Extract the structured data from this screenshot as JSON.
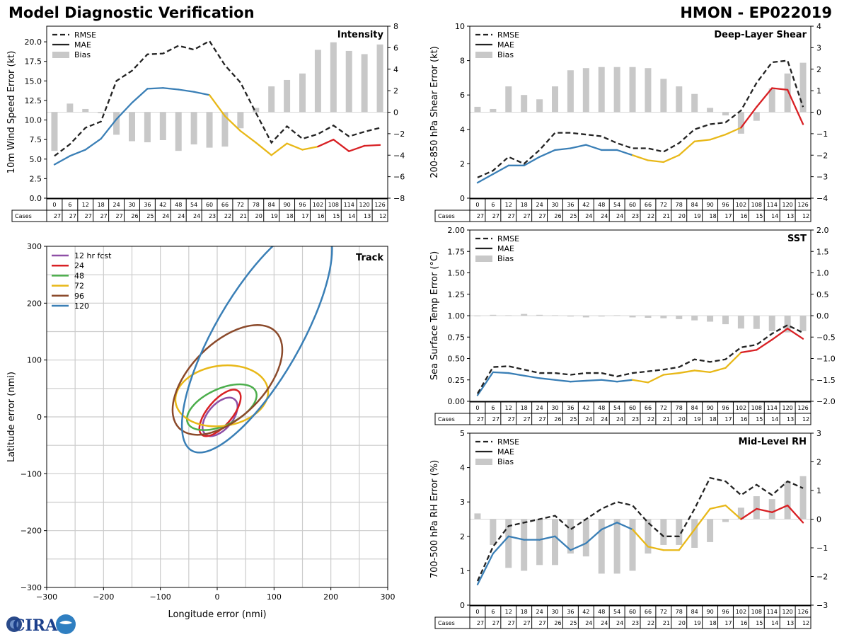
{
  "header": {
    "title": "Model Diagnostic Verification",
    "model_storm": "HMON - EP022019"
  },
  "logo": {
    "text": "CIRA"
  },
  "colors": {
    "rmse": "#222222",
    "bias_bar": "#c8c8c8",
    "blue": "#3a7fb6",
    "yellow": "#e8b818",
    "red": "#d82024",
    "purple": "#8e4fa6",
    "green": "#4cae4c",
    "brown": "#8b4a2b",
    "grid": "#cccccc"
  },
  "table": {
    "cases_label": "Cases",
    "hours": [
      "0",
      "6",
      "12",
      "18",
      "24",
      "30",
      "36",
      "42",
      "48",
      "54",
      "60",
      "66",
      "72",
      "78",
      "84",
      "90",
      "96",
      "102",
      "108",
      "114",
      "120",
      "126"
    ],
    "cases": [
      "27",
      "27",
      "27",
      "27",
      "27",
      "26",
      "25",
      "24",
      "24",
      "24",
      "23",
      "22",
      "21",
      "20",
      "19",
      "18",
      "17",
      "16",
      "15",
      "14",
      "13",
      "12"
    ]
  },
  "legend_labels": {
    "rmse": "RMSE",
    "mae": "MAE",
    "bias": "Bias"
  },
  "chart_data": [
    {
      "id": "intensity",
      "type": "line",
      "title": "Intensity",
      "ylabel": "10m Wind Speed Error (kt)",
      "x": [
        0,
        6,
        12,
        18,
        24,
        30,
        36,
        42,
        48,
        54,
        60,
        66,
        72,
        78,
        84,
        90,
        96,
        102,
        108,
        114,
        120,
        126
      ],
      "ylim": [
        0,
        22
      ],
      "yticks": [
        0.0,
        2.5,
        5.0,
        7.5,
        10.0,
        12.5,
        15.0,
        17.5,
        20.0
      ],
      "ytick_labels": [
        "0.0",
        "2.5",
        "5.0",
        "7.5",
        "10.0",
        "12.5",
        "15.0",
        "17.5",
        "20.0"
      ],
      "y2lim": [
        -8,
        8
      ],
      "y2ticks": [
        -8,
        -6,
        -4,
        -2,
        0,
        2,
        4,
        6,
        8
      ],
      "y2tick_labels": [
        "−8",
        "−6",
        "−4",
        "−2",
        "0",
        "2",
        "4",
        "6",
        "8"
      ],
      "rmse": [
        5.4,
        6.9,
        9.0,
        9.8,
        15.0,
        16.3,
        18.4,
        18.5,
        19.5,
        19.0,
        20.1,
        17.0,
        14.8,
        10.9,
        7.1,
        9.2,
        7.6,
        8.2,
        9.3,
        7.9,
        8.5,
        9.0
      ],
      "mae": [
        4.3,
        5.4,
        6.2,
        7.6,
        10.1,
        12.2,
        14.0,
        14.1,
        13.9,
        13.6,
        13.2,
        10.5,
        8.6,
        7.1,
        5.5,
        7.0,
        6.2,
        6.6,
        7.5,
        6.0,
        6.7,
        6.8
      ],
      "bias": [
        -3.6,
        0.8,
        0.3,
        -0.1,
        -2.1,
        -2.7,
        -2.8,
        -2.6,
        -3.6,
        -3.0,
        -3.3,
        -3.2,
        -1.5,
        0.4,
        2.4,
        3.0,
        3.6,
        5.8,
        6.5,
        5.7,
        5.4,
        6.3
      ]
    },
    {
      "id": "shear",
      "type": "line",
      "title": "Deep-Layer Shear",
      "ylabel": "200-850 hPa Shear Error (kt)",
      "x": [
        0,
        6,
        12,
        18,
        24,
        30,
        36,
        42,
        48,
        54,
        60,
        66,
        72,
        78,
        84,
        90,
        96,
        102,
        108,
        114,
        120,
        126
      ],
      "ylim": [
        0,
        10
      ],
      "yticks": [
        0,
        2,
        4,
        6,
        8,
        10
      ],
      "ytick_labels": [
        "0",
        "2",
        "4",
        "6",
        "8",
        "10"
      ],
      "y2lim": [
        -4,
        4
      ],
      "y2ticks": [
        -4,
        -3,
        -2,
        -1,
        0,
        1,
        2,
        3,
        4
      ],
      "y2tick_labels": [
        "−4",
        "−3",
        "−2",
        "−1",
        "0",
        "1",
        "2",
        "3",
        "4"
      ],
      "rmse": [
        1.2,
        1.6,
        2.4,
        2.0,
        2.8,
        3.8,
        3.8,
        3.7,
        3.6,
        3.2,
        2.9,
        2.9,
        2.7,
        3.2,
        4.0,
        4.3,
        4.4,
        5.1,
        6.7,
        7.9,
        8.0,
        5.3
      ],
      "mae": [
        0.9,
        1.4,
        1.9,
        1.9,
        2.4,
        2.8,
        2.9,
        3.1,
        2.8,
        2.8,
        2.5,
        2.2,
        2.1,
        2.5,
        3.3,
        3.4,
        3.7,
        4.1,
        5.3,
        6.4,
        6.3,
        4.3
      ],
      "bias": [
        0.25,
        0.15,
        1.2,
        0.8,
        0.6,
        1.2,
        1.95,
        2.05,
        2.1,
        2.1,
        2.1,
        2.05,
        1.55,
        1.2,
        0.85,
        0.2,
        -0.15,
        -1.0,
        -0.4,
        1.1,
        1.8,
        2.3
      ]
    },
    {
      "id": "sst",
      "type": "line",
      "title": "SST",
      "ylabel": "Sea Surface Temp Error (°C)",
      "x": [
        0,
        6,
        12,
        18,
        24,
        30,
        36,
        42,
        48,
        54,
        60,
        66,
        72,
        78,
        84,
        90,
        96,
        102,
        108,
        114,
        120,
        126
      ],
      "ylim": [
        0,
        2
      ],
      "yticks": [
        0.0,
        0.25,
        0.5,
        0.75,
        1.0,
        1.25,
        1.5,
        1.75,
        2.0
      ],
      "ytick_labels": [
        "0.00",
        "0.25",
        "0.50",
        "0.75",
        "1.00",
        "1.25",
        "1.50",
        "1.75",
        "2.00"
      ],
      "y2lim": [
        -2,
        2
      ],
      "y2ticks": [
        -2.0,
        -1.5,
        -1.0,
        -0.5,
        0.0,
        0.5,
        1.0,
        1.5,
        2.0
      ],
      "y2tick_labels": [
        "−2.0",
        "−1.5",
        "−1.0",
        "−0.5",
        "0.0",
        "0.5",
        "1.0",
        "1.5",
        "2.0"
      ],
      "rmse": [
        0.09,
        0.4,
        0.41,
        0.37,
        0.33,
        0.33,
        0.31,
        0.33,
        0.33,
        0.29,
        0.33,
        0.35,
        0.37,
        0.4,
        0.49,
        0.46,
        0.49,
        0.63,
        0.66,
        0.79,
        0.89,
        0.8
      ],
      "mae": [
        0.07,
        0.34,
        0.33,
        0.3,
        0.27,
        0.25,
        0.23,
        0.24,
        0.25,
        0.23,
        0.25,
        0.22,
        0.31,
        0.33,
        0.36,
        0.34,
        0.39,
        0.57,
        0.6,
        0.72,
        0.85,
        0.73
      ],
      "bias": [
        0.0,
        0.02,
        0.01,
        0.04,
        0.02,
        0.01,
        -0.02,
        -0.04,
        -0.02,
        0.01,
        -0.04,
        -0.05,
        -0.06,
        -0.08,
        -0.11,
        -0.14,
        -0.2,
        -0.3,
        -0.31,
        -0.36,
        -0.39,
        -0.36
      ]
    },
    {
      "id": "rh",
      "type": "line",
      "title": "Mid-Level RH",
      "ylabel": "700-500 hPa RH Error (%)",
      "x": [
        0,
        6,
        12,
        18,
        24,
        30,
        36,
        42,
        48,
        54,
        60,
        66,
        72,
        78,
        84,
        90,
        96,
        102,
        108,
        114,
        120,
        126
      ],
      "ylim": [
        0,
        5
      ],
      "yticks": [
        0,
        1,
        2,
        3,
        4,
        5
      ],
      "ytick_labels": [
        "0",
        "1",
        "2",
        "3",
        "4",
        "5"
      ],
      "y2lim": [
        -3,
        3
      ],
      "y2ticks": [
        -3,
        -2,
        -1,
        0,
        1,
        2,
        3
      ],
      "y2tick_labels": [
        "−3",
        "−2",
        "−1",
        "0",
        "1",
        "2",
        "3"
      ],
      "rmse": [
        0.7,
        1.7,
        2.3,
        2.4,
        2.5,
        2.6,
        2.2,
        2.5,
        2.8,
        3.0,
        2.9,
        2.4,
        2.0,
        2.0,
        2.8,
        3.7,
        3.6,
        3.2,
        3.5,
        3.2,
        3.6,
        3.4
      ],
      "mae": [
        0.6,
        1.5,
        2.0,
        1.9,
        1.9,
        2.0,
        1.6,
        1.8,
        2.2,
        2.4,
        2.2,
        1.7,
        1.6,
        1.6,
        2.2,
        2.8,
        2.9,
        2.5,
        2.8,
        2.7,
        2.9,
        2.4
      ],
      "bias": [
        0.2,
        -0.9,
        -1.7,
        -1.8,
        -1.6,
        -1.6,
        -1.2,
        -1.3,
        -1.9,
        -1.9,
        -1.8,
        -1.2,
        -0.9,
        -0.9,
        -1.0,
        -0.8,
        -0.1,
        0.4,
        0.8,
        0.7,
        1.3,
        1.5
      ]
    },
    {
      "id": "track",
      "type": "scatter",
      "title": "Track",
      "xlabel": "Longitude error (nmi)",
      "ylabel": "Latitude error (nmi)",
      "xlim": [
        -300,
        300
      ],
      "ylim": [
        -300,
        300
      ],
      "ticks": [
        -300,
        -200,
        -100,
        0,
        100,
        200,
        300
      ],
      "tick_labels": [
        "−300",
        "−200",
        "−100",
        "0",
        "100",
        "200",
        "300"
      ],
      "ellipses": [
        {
          "label": "12 hr fcst",
          "cx": 5,
          "cy": 0,
          "rx": 40,
          "ry": 22,
          "angle_deg": 50
        },
        {
          "label": "24",
          "cx": 5,
          "cy": 7,
          "rx": 50,
          "ry": 22,
          "angle_deg": 50
        },
        {
          "label": "48",
          "cx": 8,
          "cy": 17,
          "rx": 66,
          "ry": 32,
          "angle_deg": 25
        },
        {
          "label": "72",
          "cx": 8,
          "cy": 37,
          "rx": 82,
          "ry": 53,
          "angle_deg": 8
        },
        {
          "label": "96",
          "cx": 18,
          "cy": 65,
          "rx": 120,
          "ry": 65,
          "angle_deg": 45
        },
        {
          "label": "120",
          "cx": 70,
          "cy": 140,
          "rx": 230,
          "ry": 75,
          "angle_deg": 60
        }
      ]
    }
  ]
}
